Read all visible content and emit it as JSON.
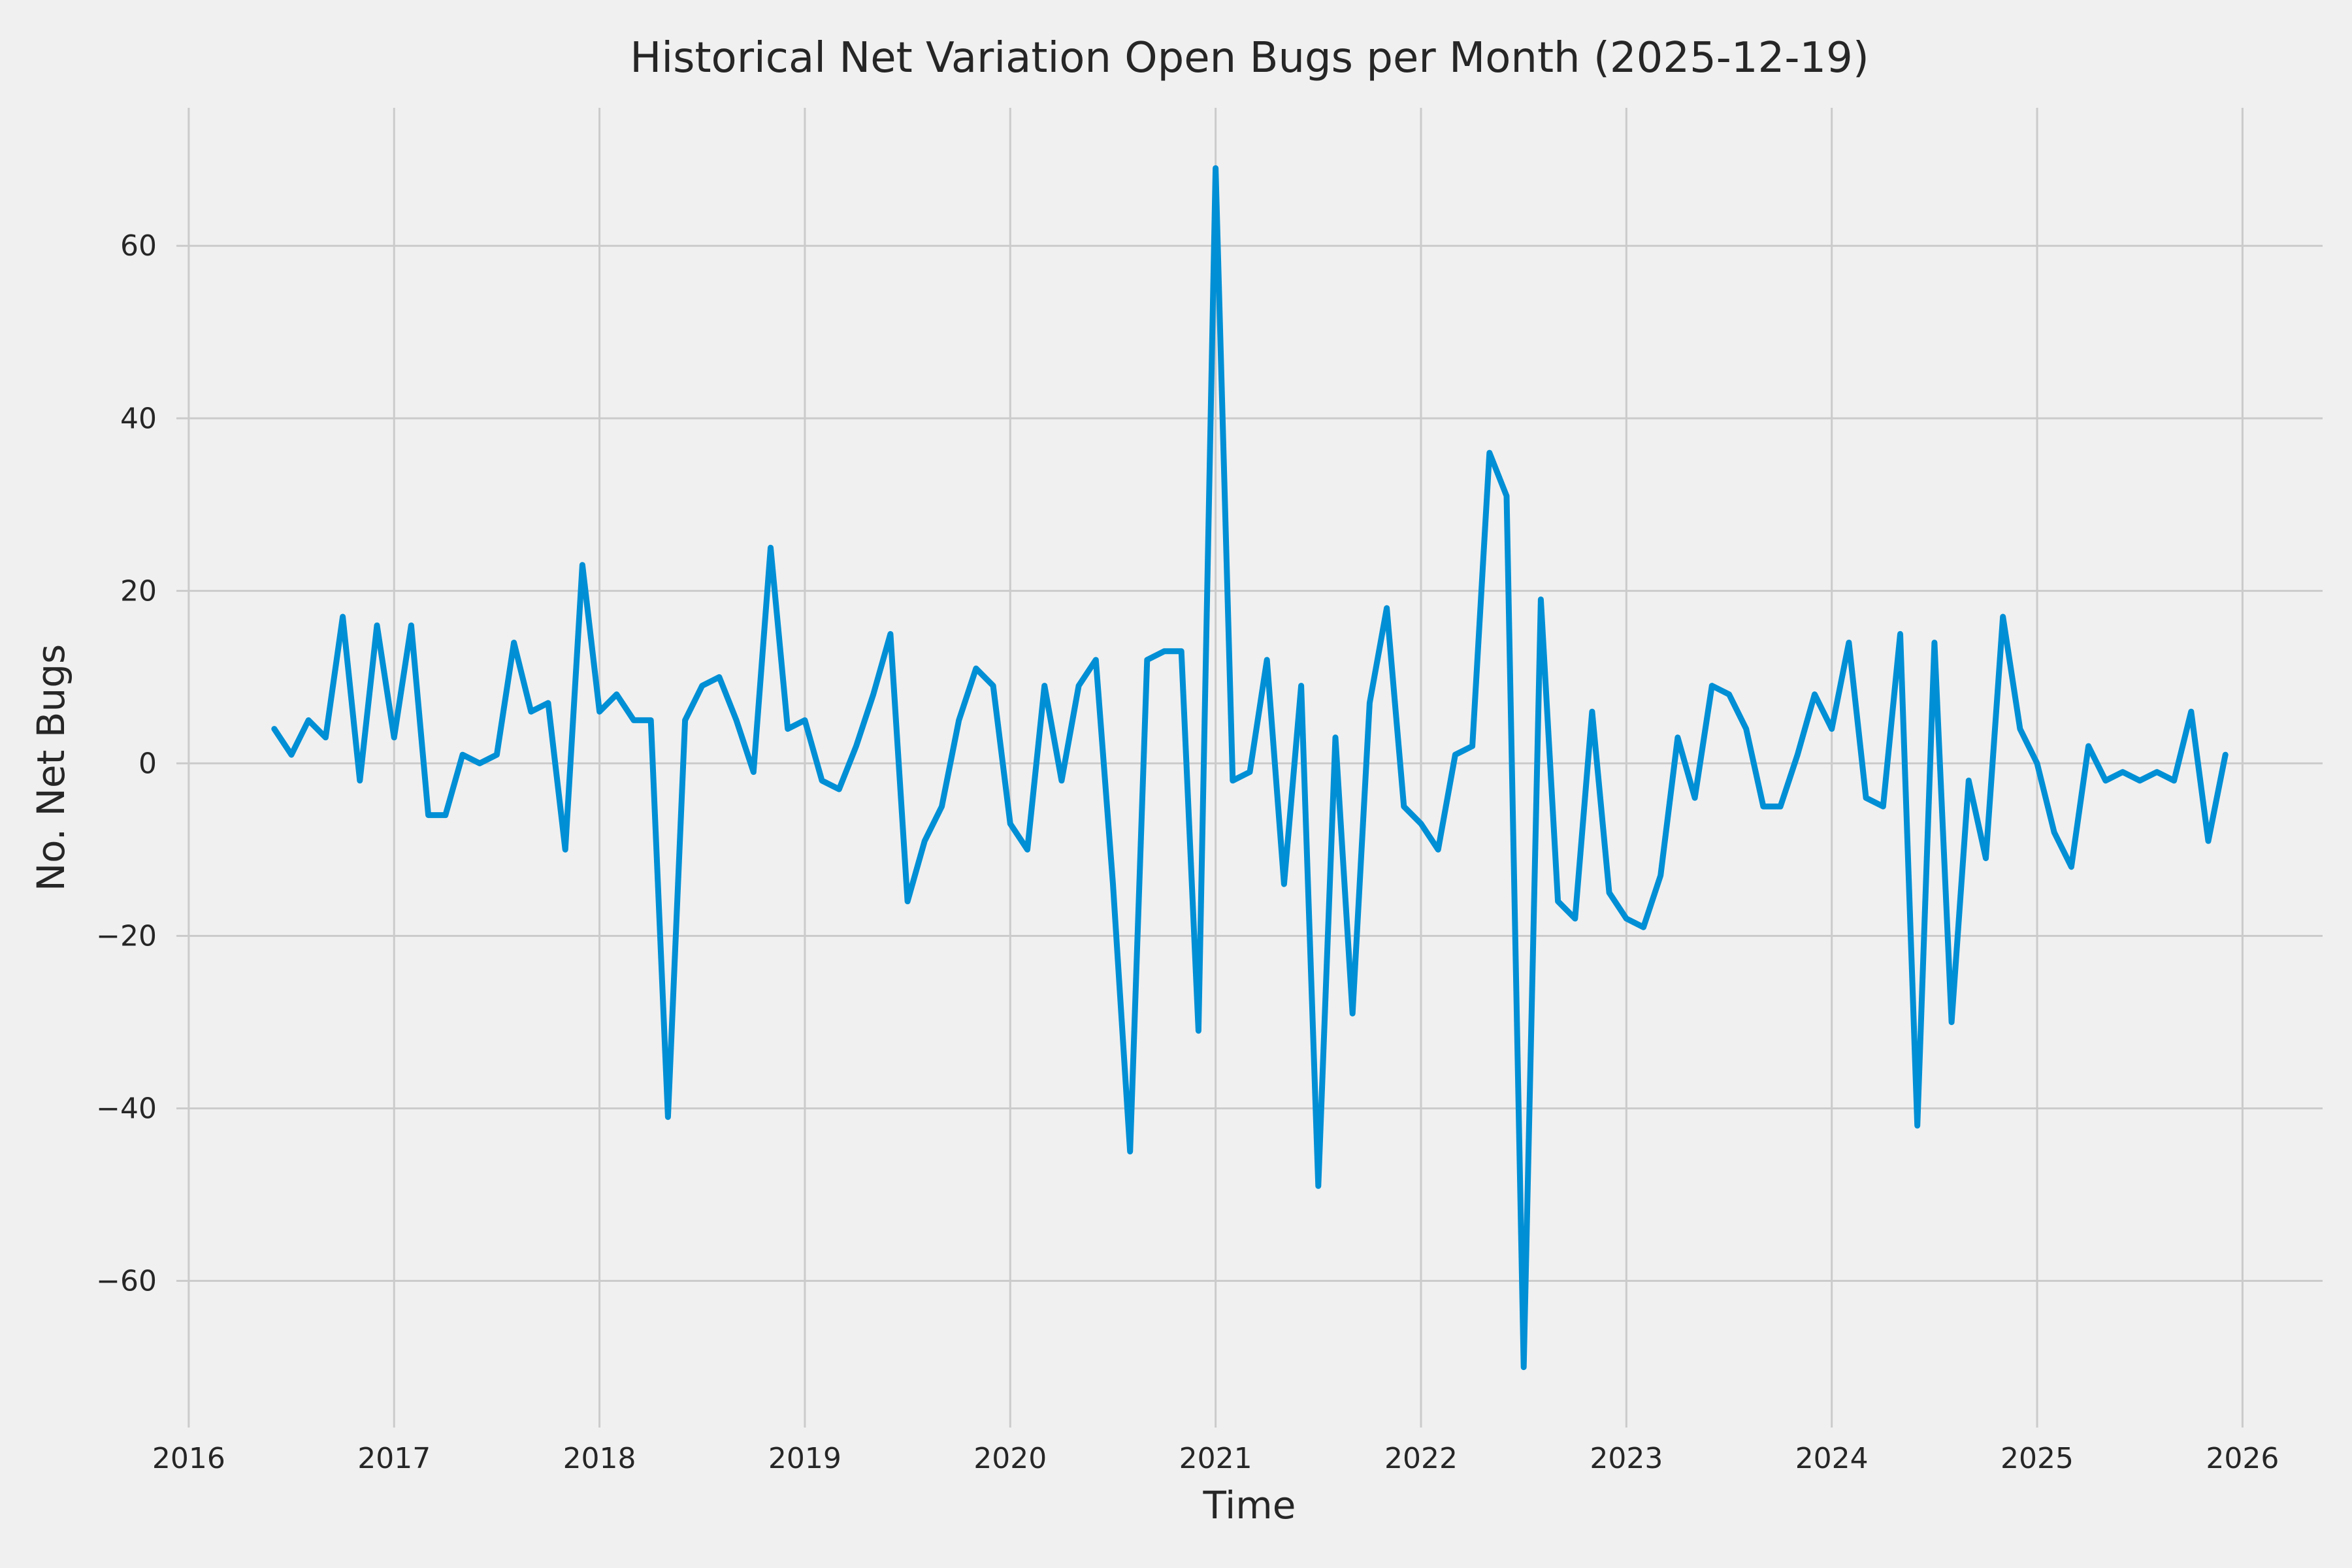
{
  "page": {
    "background_color": "#f0f0f0"
  },
  "chart_data": {
    "type": "line",
    "title": "Historical Net Variation Open Bugs per Month (2025-12-19)",
    "xlabel": "Time",
    "ylabel": "No. Net Bugs",
    "grid": true,
    "legend_position": "none",
    "grid_color": "#cbcbcb",
    "text_color": "#262626",
    "xlim": [
      2015.94,
      2026.39
    ],
    "ylim": [
      -77,
      76
    ],
    "xticks": [
      2016,
      2017,
      2018,
      2019,
      2020,
      2021,
      2022,
      2023,
      2024,
      2025,
      2026
    ],
    "yticks": [
      -60,
      -40,
      -20,
      0,
      20,
      40,
      60
    ],
    "series": [
      {
        "name": "net-open-bugs-per-month",
        "color": "#008fd5",
        "start_year": 2016,
        "start_month": 6,
        "frequency": "monthly",
        "values": [
          4,
          1,
          5,
          3,
          17,
          -2,
          16,
          3,
          16,
          -6,
          -6,
          1,
          0,
          1,
          14,
          6,
          7,
          -10,
          23,
          6,
          8,
          5,
          5,
          -41,
          5,
          9,
          10,
          5,
          -1,
          25,
          4,
          5,
          -2,
          -3,
          2,
          8,
          15,
          -16,
          -9,
          -5,
          5,
          11,
          9,
          -7,
          -10,
          9,
          -2,
          9,
          12,
          -14,
          -45,
          12,
          13,
          13,
          -31,
          69,
          -2,
          -1,
          12,
          -14,
          9,
          -49,
          3,
          -29,
          7,
          18,
          -5,
          -7,
          -10,
          1,
          2,
          36,
          31,
          -70,
          19,
          -16,
          -18,
          6,
          -15,
          -18,
          -19,
          -13,
          3,
          -4,
          9,
          8,
          4,
          -5,
          -5,
          1,
          8,
          4,
          14,
          -4,
          -5,
          15,
          -42,
          14,
          -30,
          -2,
          -11,
          17,
          4,
          0,
          -8,
          -12,
          2,
          -2,
          -1,
          -2,
          -1,
          -2,
          6,
          -9,
          1
        ]
      }
    ]
  }
}
